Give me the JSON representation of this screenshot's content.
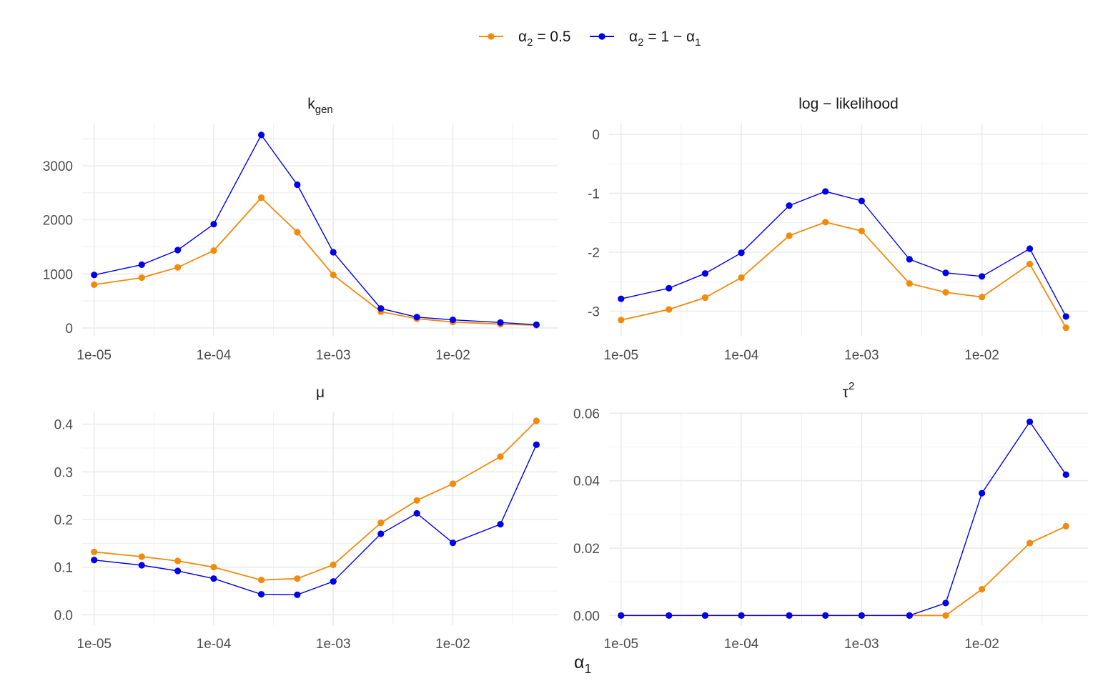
{
  "legend": {
    "items": [
      {
        "label_base": "α",
        "label_sub": "2",
        "label_rest": " = 0.5",
        "color": "#f28a0a"
      },
      {
        "label_base": "α",
        "label_sub": "2",
        "label_rest": " = 1 − α",
        "label_sub2": "1",
        "color": "#0000ee"
      }
    ]
  },
  "x_axis_label": {
    "base": "α",
    "sub": "1"
  },
  "colors": {
    "orange": "#f28a0a",
    "blue": "#0000ee",
    "grid": "#ebebeb"
  },
  "chart_data": [
    {
      "type": "line",
      "title_base": "k",
      "title_sub": "gen",
      "x": [
        1e-05,
        2.5e-05,
        5e-05,
        0.0001,
        0.00025,
        0.0005,
        0.001,
        0.0025,
        0.005,
        0.01,
        0.025,
        0.05
      ],
      "x_scale": "log",
      "x_ticks": [
        1e-05,
        0.0001,
        0.001,
        0.01
      ],
      "x_tick_labels": [
        "1e-05",
        "1e-04",
        "1e-03",
        "1e-02"
      ],
      "y_ticks": [
        0,
        1000,
        2000,
        3000
      ],
      "y_tick_labels": [
        "0",
        "1000",
        "2000",
        "3000"
      ],
      "ylim": [
        -160,
        3780
      ],
      "series": [
        {
          "name": "α2 = 0.5",
          "color": "#f28a0a",
          "values": [
            800,
            930,
            1120,
            1430,
            2410,
            1770,
            980,
            300,
            170,
            110,
            70,
            50
          ]
        },
        {
          "name": "α2 = 1 − α1",
          "color": "#0000ee",
          "values": [
            980,
            1170,
            1440,
            1920,
            3570,
            2650,
            1400,
            360,
            200,
            150,
            100,
            60
          ]
        }
      ]
    },
    {
      "type": "line",
      "title_base": "log − likelihood",
      "x": [
        1e-05,
        2.5e-05,
        5e-05,
        0.0001,
        0.00025,
        0.0005,
        0.001,
        0.0025,
        0.005,
        0.01,
        0.025,
        0.05
      ],
      "x_scale": "log",
      "x_ticks": [
        1e-05,
        0.0001,
        0.001,
        0.01
      ],
      "x_tick_labels": [
        "1e-05",
        "1e-04",
        "1e-03",
        "1e-02"
      ],
      "y_ticks": [
        -3,
        -2,
        -1,
        0
      ],
      "y_tick_labels": [
        "-3",
        "-2",
        "-1",
        "0"
      ],
      "ylim": [
        -3.43,
        0.18
      ],
      "series": [
        {
          "name": "α2 = 0.5",
          "color": "#f28a0a",
          "values": [
            -3.15,
            -2.97,
            -2.77,
            -2.43,
            -1.72,
            -1.49,
            -1.64,
            -2.53,
            -2.68,
            -2.76,
            -2.2,
            -3.28
          ]
        },
        {
          "name": "α2 = 1 − α1",
          "color": "#0000ee",
          "values": [
            -2.79,
            -2.61,
            -2.36,
            -2.01,
            -1.21,
            -0.97,
            -1.13,
            -2.12,
            -2.35,
            -2.41,
            -1.94,
            -3.09
          ]
        }
      ]
    },
    {
      "type": "line",
      "title_base": "μ",
      "x": [
        1e-05,
        2.5e-05,
        5e-05,
        0.0001,
        0.00025,
        0.0005,
        0.001,
        0.0025,
        0.005,
        0.01,
        0.025,
        0.05
      ],
      "x_scale": "log",
      "x_ticks": [
        1e-05,
        0.0001,
        0.001,
        0.01
      ],
      "x_tick_labels": [
        "1e-05",
        "1e-04",
        "1e-03",
        "1e-02"
      ],
      "y_ticks": [
        0.0,
        0.1,
        0.2,
        0.3,
        0.4
      ],
      "y_tick_labels": [
        "0.0",
        "0.1",
        "0.2",
        "0.3",
        "0.4"
      ],
      "ylim": [
        -0.022,
        0.425
      ],
      "series": [
        {
          "name": "α2 = 0.5",
          "color": "#f28a0a",
          "values": [
            0.132,
            0.122,
            0.113,
            0.1,
            0.073,
            0.076,
            0.105,
            0.193,
            0.24,
            0.275,
            0.332,
            0.407
          ]
        },
        {
          "name": "α2 = 1 − α1",
          "color": "#0000ee",
          "values": [
            0.115,
            0.104,
            0.092,
            0.076,
            0.043,
            0.042,
            0.07,
            0.17,
            0.213,
            0.151,
            0.19,
            0.357
          ]
        }
      ]
    },
    {
      "type": "line",
      "title_base": "τ",
      "title_sup": "2",
      "x": [
        1e-05,
        2.5e-05,
        5e-05,
        0.0001,
        0.00025,
        0.0005,
        0.001,
        0.0025,
        0.005,
        0.01,
        0.025,
        0.05
      ],
      "x_scale": "log",
      "x_ticks": [
        1e-05,
        0.0001,
        0.001,
        0.01
      ],
      "x_tick_labels": [
        "1e-05",
        "1e-04",
        "1e-03",
        "1e-02"
      ],
      "y_ticks": [
        0.0,
        0.02,
        0.04,
        0.06
      ],
      "y_tick_labels": [
        "0.00",
        "0.02",
        "0.04",
        "0.06"
      ],
      "ylim": [
        -0.0029,
        0.0603
      ],
      "series": [
        {
          "name": "α2 = 0.5",
          "color": "#f28a0a",
          "values": [
            0,
            0,
            0,
            0,
            0,
            0,
            0,
            0,
            0,
            0.0078,
            0.0215,
            0.0265
          ]
        },
        {
          "name": "α2 = 1 − α1",
          "color": "#0000ee",
          "values": [
            0,
            0,
            0,
            0,
            0,
            0,
            0,
            0,
            0.0037,
            0.0363,
            0.0575,
            0.0418
          ]
        }
      ]
    }
  ]
}
